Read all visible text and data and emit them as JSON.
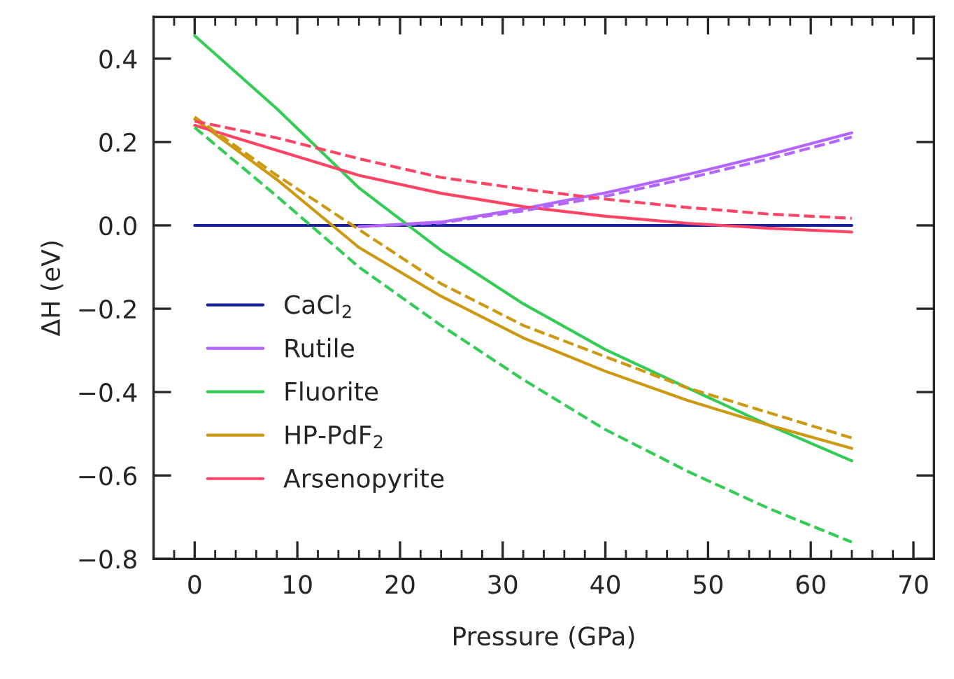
{
  "chart_data": {
    "type": "line",
    "xlabel": "Pressure (GPa)",
    "ylabel": "ΔH (eV)",
    "xlim": [
      -4,
      72
    ],
    "xticks": [
      0,
      10,
      20,
      30,
      40,
      50,
      60,
      70
    ],
    "ylim": [
      -0.8,
      0.5
    ],
    "yticks": [
      {
        "value": -0.8,
        "label": "−0.8"
      },
      {
        "value": -0.6,
        "label": "−0.6"
      },
      {
        "value": -0.4,
        "label": "−0.4"
      },
      {
        "value": -0.2,
        "label": "−0.2"
      },
      {
        "value": 0,
        "label": "0.0"
      },
      {
        "value": 0.2,
        "label": "0.2"
      },
      {
        "value": 0.4,
        "label": "0.4"
      }
    ],
    "grid": false,
    "legend": "bottom left",
    "marker": "none",
    "x": [
      0,
      8,
      16,
      24,
      32,
      40,
      48,
      56,
      64
    ],
    "series": [
      {
        "name": "CaCl$_{2}$",
        "color": "#1a2299",
        "line_style": "solid",
        "values": [
          0,
          0,
          0,
          0,
          0,
          0,
          0,
          0,
          0
        ]
      },
      {
        "name": "Rutile",
        "color": "#b266ff",
        "line_style": "solid",
        "x": [
          16,
          24,
          32,
          40,
          48,
          56,
          64
        ],
        "values": [
          -0.003,
          0.008,
          0.04,
          0.078,
          0.122,
          0.17,
          0.222
        ]
      },
      {
        "name": "Fluorite",
        "color": "#33cc55",
        "line_style": "solid",
        "values": [
          0.455,
          0.28,
          0.09,
          -0.06,
          -0.188,
          -0.298,
          -0.39,
          -0.48,
          -0.565
        ]
      },
      {
        "name": "HP-PdF$_{2}$",
        "color": "#cc9911",
        "line_style": "solid",
        "values": [
          0.255,
          0.11,
          -0.053,
          -0.17,
          -0.27,
          -0.35,
          -0.42,
          -0.48,
          -0.535
        ]
      },
      {
        "name": "Arsenopyrite",
        "color": "#ff4466",
        "line_style": "solid",
        "values": [
          0.24,
          0.18,
          0.12,
          0.077,
          0.045,
          0.022,
          0.005,
          -0.007,
          -0.016
        ]
      },
      {
        "color": "#b266ff",
        "line_style": "dashed",
        "x": [
          16,
          24,
          32,
          40,
          48,
          56,
          64
        ],
        "values": [
          -0.003,
          0.006,
          0.035,
          0.07,
          0.113,
          0.16,
          0.212
        ]
      },
      {
        "color": "#33cc55",
        "line_style": "dashed",
        "values": [
          0.235,
          0.07,
          -0.1,
          -0.24,
          -0.37,
          -0.49,
          -0.59,
          -0.68,
          -0.76
        ]
      },
      {
        "color": "#cc9911",
        "line_style": "dashed",
        "values": [
          0.26,
          0.12,
          -0.01,
          -0.14,
          -0.24,
          -0.315,
          -0.39,
          -0.45,
          -0.51
        ]
      },
      {
        "color": "#ff4466",
        "line_style": "dashed",
        "values": [
          0.25,
          0.21,
          0.16,
          0.115,
          0.087,
          0.063,
          0.043,
          0.027,
          0.017
        ]
      }
    ]
  }
}
